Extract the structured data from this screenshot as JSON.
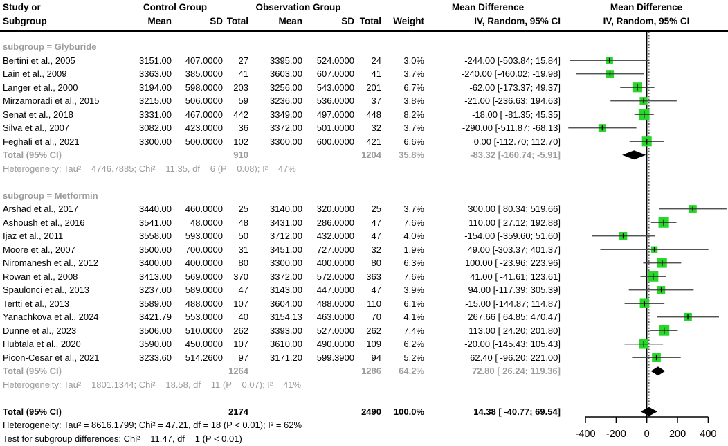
{
  "header": {
    "study_or": "Study or",
    "subgroup": "Subgroup",
    "control_group": "Control Group",
    "observation_group": "Observation Group",
    "mean": "Mean",
    "sd": "SD",
    "total": "Total",
    "weight": "Weight",
    "md_title": "Mean Difference",
    "md_ci": "IV, Random, 95% CI"
  },
  "groups": [
    {
      "label": "subgroup = Glyburide",
      "studies": [
        {
          "study": "Bertini et al., 2005",
          "c_mean": "3151.00",
          "c_sd": "407.0000",
          "c_total": "27",
          "o_mean": "3395.00",
          "o_sd": "524.0000",
          "o_total": "24",
          "weight": "3.0%",
          "w": 3.0,
          "md_text": "-244.00 [-503.84; 15.84]",
          "md": -244.0,
          "lo": -503.84,
          "hi": 15.84
        },
        {
          "study": "Lain et al., 2009",
          "c_mean": "3363.00",
          "c_sd": "385.0000",
          "c_total": "41",
          "o_mean": "3603.00",
          "o_sd": "607.0000",
          "o_total": "41",
          "weight": "3.7%",
          "w": 3.7,
          "md_text": "-240.00 [-460.02; -19.98]",
          "md": -240.0,
          "lo": -460.02,
          "hi": -19.98
        },
        {
          "study": "Langer et al., 2000",
          "c_mean": "3194.00",
          "c_sd": "598.0000",
          "c_total": "203",
          "o_mean": "3256.00",
          "o_sd": "543.0000",
          "o_total": "201",
          "weight": "6.7%",
          "w": 6.7,
          "md_text": "-62.00 [-173.37; 49.37]",
          "md": -62.0,
          "lo": -173.37,
          "hi": 49.37
        },
        {
          "study": "Mirzamoradi et al., 2015",
          "c_mean": "3215.00",
          "c_sd": "506.0000",
          "c_total": "59",
          "o_mean": "3236.00",
          "o_sd": "536.0000",
          "o_total": "37",
          "weight": "3.8%",
          "w": 3.8,
          "md_text": "-21.00 [-236.63; 194.63]",
          "md": -21.0,
          "lo": -236.63,
          "hi": 194.63
        },
        {
          "study": "Senat et al., 2018",
          "c_mean": "3331.00",
          "c_sd": "467.0000",
          "c_total": "442",
          "o_mean": "3349.00",
          "o_sd": "497.0000",
          "o_total": "448",
          "weight": "8.2%",
          "w": 8.2,
          "md_text": "-18.00 [ -81.35; 45.35]",
          "md": -18.0,
          "lo": -81.35,
          "hi": 45.35
        },
        {
          "study": "Silva et al., 2007",
          "c_mean": "3082.00",
          "c_sd": "423.0000",
          "c_total": "36",
          "o_mean": "3372.00",
          "o_sd": "501.0000",
          "o_total": "32",
          "weight": "3.7%",
          "w": 3.7,
          "md_text": "-290.00 [-511.87; -68.13]",
          "md": -290.0,
          "lo": -511.87,
          "hi": -68.13
        },
        {
          "study": "Feghali et al., 2021",
          "c_mean": "3300.00",
          "c_sd": "500.0000",
          "c_total": "102",
          "o_mean": "3300.00",
          "o_sd": "600.0000",
          "o_total": "421",
          "weight": "6.6%",
          "w": 6.6,
          "md_text": "0.00 [-112.70; 112.70]",
          "md": 0.0,
          "lo": -112.7,
          "hi": 112.7
        }
      ],
      "total": {
        "label": "Total (95% CI)",
        "c_total": "910",
        "o_total": "1204",
        "weight": "35.8%",
        "md_text": "-83.32 [-160.74; -5.91]",
        "md": -83.32,
        "lo": -160.74,
        "hi": -5.91
      },
      "heterogeneity": "Heterogeneity: Tau² = 4746.7885; Chi² = 11.35, df = 6 (P = 0.08); I² = 47%"
    },
    {
      "label": "subgroup = Metformin",
      "studies": [
        {
          "study": "Arshad et al., 2017",
          "c_mean": "3440.00",
          "c_sd": "460.0000",
          "c_total": "25",
          "o_mean": "3140.00",
          "o_sd": "320.0000",
          "o_total": "25",
          "weight": "3.7%",
          "w": 3.7,
          "md_text": "300.00 [ 80.34; 519.66]",
          "md": 300.0,
          "lo": 80.34,
          "hi": 519.66
        },
        {
          "study": "Ashoush et al., 2016",
          "c_mean": "3541.00",
          "c_sd": "48.0000",
          "c_total": "48",
          "o_mean": "3431.00",
          "o_sd": "286.0000",
          "o_total": "47",
          "weight": "7.6%",
          "w": 7.6,
          "md_text": "110.00 [ 27.12; 192.88]",
          "md": 110.0,
          "lo": 27.12,
          "hi": 192.88
        },
        {
          "study": "Ijaz et al., 2011",
          "c_mean": "3558.00",
          "c_sd": "593.0000",
          "c_total": "50",
          "o_mean": "3712.00",
          "o_sd": "432.0000",
          "o_total": "47",
          "weight": "4.0%",
          "w": 4.0,
          "md_text": "-154.00 [-359.60; 51.60]",
          "md": -154.0,
          "lo": -359.6,
          "hi": 51.6
        },
        {
          "study": "Moore et al., 2007",
          "c_mean": "3500.00",
          "c_sd": "700.0000",
          "c_total": "31",
          "o_mean": "3451.00",
          "o_sd": "727.0000",
          "o_total": "32",
          "weight": "1.9%",
          "w": 1.9,
          "md_text": "49.00 [-303.37; 401.37]",
          "md": 49.0,
          "lo": -303.37,
          "hi": 401.37
        },
        {
          "study": "Niromanesh et al., 2012",
          "c_mean": "3400.00",
          "c_sd": "400.0000",
          "c_total": "80",
          "o_mean": "3300.00",
          "o_sd": "400.0000",
          "o_total": "80",
          "weight": "6.3%",
          "w": 6.3,
          "md_text": "100.00 [ -23.96; 223.96]",
          "md": 100.0,
          "lo": -23.96,
          "hi": 223.96
        },
        {
          "study": "Rowan et al., 2008",
          "c_mean": "3413.00",
          "c_sd": "569.0000",
          "c_total": "370",
          "o_mean": "3372.00",
          "o_sd": "572.0000",
          "o_total": "363",
          "weight": "7.6%",
          "w": 7.6,
          "md_text": "41.00 [ -41.61; 123.61]",
          "md": 41.0,
          "lo": -41.61,
          "hi": 123.61
        },
        {
          "study": "Spaulonci et al., 2013",
          "c_mean": "3237.00",
          "c_sd": "589.0000",
          "c_total": "47",
          "o_mean": "3143.00",
          "o_sd": "447.0000",
          "o_total": "47",
          "weight": "3.9%",
          "w": 3.9,
          "md_text": "94.00 [-117.39; 305.39]",
          "md": 94.0,
          "lo": -117.39,
          "hi": 305.39
        },
        {
          "study": "Tertti et al., 2013",
          "c_mean": "3589.00",
          "c_sd": "488.0000",
          "c_total": "107",
          "o_mean": "3604.00",
          "o_sd": "488.0000",
          "o_total": "110",
          "weight": "6.1%",
          "w": 6.1,
          "md_text": "-15.00 [-144.87; 114.87]",
          "md": -15.0,
          "lo": -144.87,
          "hi": 114.87
        },
        {
          "study": "Yanachkova et al., 2024",
          "c_mean": "3421.79",
          "c_sd": "553.0000",
          "c_total": "40",
          "o_mean": "3154.13",
          "o_sd": "463.0000",
          "o_total": "70",
          "weight": "4.1%",
          "w": 4.1,
          "md_text": "267.66 [ 64.85; 470.47]",
          "md": 267.66,
          "lo": 64.85,
          "hi": 470.47
        },
        {
          "study": "Dunne et al., 2023",
          "c_mean": "3506.00",
          "c_sd": "510.0000",
          "c_total": "262",
          "o_mean": "3393.00",
          "o_sd": "527.0000",
          "o_total": "262",
          "weight": "7.4%",
          "w": 7.4,
          "md_text": "113.00 [ 24.20; 201.80]",
          "md": 113.0,
          "lo": 24.2,
          "hi": 201.8
        },
        {
          "study": "Hubtala et al., 2020",
          "c_mean": "3590.00",
          "c_sd": "450.0000",
          "c_total": "107",
          "o_mean": "3610.00",
          "o_sd": "490.0000",
          "o_total": "109",
          "weight": "6.2%",
          "w": 6.2,
          "md_text": "-20.00 [-145.43; 105.43]",
          "md": -20.0,
          "lo": -145.43,
          "hi": 105.43
        },
        {
          "study": "Picon-Cesar et al., 2021",
          "c_mean": "3233.60",
          "c_sd": "514.2600",
          "c_total": "97",
          "o_mean": "3171.20",
          "o_sd": "599.3900",
          "o_total": "94",
          "weight": "5.2%",
          "w": 5.2,
          "md_text": "62.40 [ -96.20; 221.00]",
          "md": 62.4,
          "lo": -96.2,
          "hi": 221.0
        }
      ],
      "total": {
        "label": "Total (95% CI)",
        "c_total": "1264",
        "o_total": "1286",
        "weight": "64.2%",
        "md_text": "72.80 [ 26.24; 119.36]",
        "md": 72.8,
        "lo": 26.24,
        "hi": 119.36
      },
      "heterogeneity": "Heterogeneity: Tau² = 1801.1344; Chi² = 18.58, df = 11 (P = 0.07); I² = 41%"
    }
  ],
  "overall": {
    "label": "Total (95% CI)",
    "c_total": "2174",
    "o_total": "2490",
    "weight": "100.0%",
    "md_text": "14.38 [ -40.77; 69.54]",
    "md": 14.38,
    "lo": -40.77,
    "hi": 69.54,
    "heterogeneity": "Heterogeneity: Tau² = 8616.1799; Chi² = 47.21, df = 18 (P < 0.01); I² = 62%",
    "subgroup_test": "Test for subgroup differences: Chi² = 11.47, df = 1 (P < 0.01)"
  },
  "chart_data": {
    "type": "scatter",
    "variant": "forest_plot_mean_difference_random_effects",
    "title": "Mean Difference IV, Random, 95% CI",
    "x_axis": {
      "ticks": [
        -400,
        -200,
        0,
        200,
        400
      ],
      "range": [
        -400,
        400
      ]
    },
    "zero_line": 0,
    "overall_effect_dotted_line": 14.38,
    "marker_color": "#28d728",
    "studies": [
      {
        "group": "Glyburide",
        "name": "Bertini et al., 2005",
        "md": -244.0,
        "ci": [
          -503.84,
          15.84
        ],
        "weight_pct": 3.0
      },
      {
        "group": "Glyburide",
        "name": "Lain et al., 2009",
        "md": -240.0,
        "ci": [
          -460.02,
          -19.98
        ],
        "weight_pct": 3.7
      },
      {
        "group": "Glyburide",
        "name": "Langer et al., 2000",
        "md": -62.0,
        "ci": [
          -173.37,
          49.37
        ],
        "weight_pct": 6.7
      },
      {
        "group": "Glyburide",
        "name": "Mirzamoradi et al., 2015",
        "md": -21.0,
        "ci": [
          -236.63,
          194.63
        ],
        "weight_pct": 3.8
      },
      {
        "group": "Glyburide",
        "name": "Senat et al., 2018",
        "md": -18.0,
        "ci": [
          -81.35,
          45.35
        ],
        "weight_pct": 8.2
      },
      {
        "group": "Glyburide",
        "name": "Silva et al., 2007",
        "md": -290.0,
        "ci": [
          -511.87,
          -68.13
        ],
        "weight_pct": 3.7
      },
      {
        "group": "Glyburide",
        "name": "Feghali et al., 2021",
        "md": 0.0,
        "ci": [
          -112.7,
          112.7
        ],
        "weight_pct": 6.6
      },
      {
        "group": "Metformin",
        "name": "Arshad et al., 2017",
        "md": 300.0,
        "ci": [
          80.34,
          519.66
        ],
        "weight_pct": 3.7
      },
      {
        "group": "Metformin",
        "name": "Ashoush et al., 2016",
        "md": 110.0,
        "ci": [
          27.12,
          192.88
        ],
        "weight_pct": 7.6
      },
      {
        "group": "Metformin",
        "name": "Ijaz et al., 2011",
        "md": -154.0,
        "ci": [
          -359.6,
          51.6
        ],
        "weight_pct": 4.0
      },
      {
        "group": "Metformin",
        "name": "Moore et al., 2007",
        "md": 49.0,
        "ci": [
          -303.37,
          401.37
        ],
        "weight_pct": 1.9
      },
      {
        "group": "Metformin",
        "name": "Niromanesh et al., 2012",
        "md": 100.0,
        "ci": [
          -23.96,
          223.96
        ],
        "weight_pct": 6.3
      },
      {
        "group": "Metformin",
        "name": "Rowan et al., 2008",
        "md": 41.0,
        "ci": [
          -41.61,
          123.61
        ],
        "weight_pct": 7.6
      },
      {
        "group": "Metformin",
        "name": "Spaulonci et al., 2013",
        "md": 94.0,
        "ci": [
          -117.39,
          305.39
        ],
        "weight_pct": 3.9
      },
      {
        "group": "Metformin",
        "name": "Tertti et al., 2013",
        "md": -15.0,
        "ci": [
          -144.87,
          114.87
        ],
        "weight_pct": 6.1
      },
      {
        "group": "Metformin",
        "name": "Yanachkova et al., 2024",
        "md": 267.66,
        "ci": [
          64.85,
          470.47
        ],
        "weight_pct": 4.1
      },
      {
        "group": "Metformin",
        "name": "Dunne et al., 2023",
        "md": 113.0,
        "ci": [
          24.2,
          201.8
        ],
        "weight_pct": 7.4
      },
      {
        "group": "Metformin",
        "name": "Hubtala et al., 2020",
        "md": -20.0,
        "ci": [
          -145.43,
          105.43
        ],
        "weight_pct": 6.2
      },
      {
        "group": "Metformin",
        "name": "Picon-Cesar et al., 2021",
        "md": 62.4,
        "ci": [
          -96.2,
          221.0
        ],
        "weight_pct": 5.2
      }
    ],
    "subtotals": [
      {
        "name": "Glyburide Total (95% CI)",
        "md": -83.32,
        "ci": [
          -160.74,
          -5.91
        ],
        "weight_pct": 35.8
      },
      {
        "name": "Metformin Total (95% CI)",
        "md": 72.8,
        "ci": [
          26.24,
          119.36
        ],
        "weight_pct": 64.2
      }
    ],
    "overall": {
      "name": "Total (95% CI)",
      "md": 14.38,
      "ci": [
        -40.77,
        69.54
      ],
      "weight_pct": 100.0
    }
  }
}
